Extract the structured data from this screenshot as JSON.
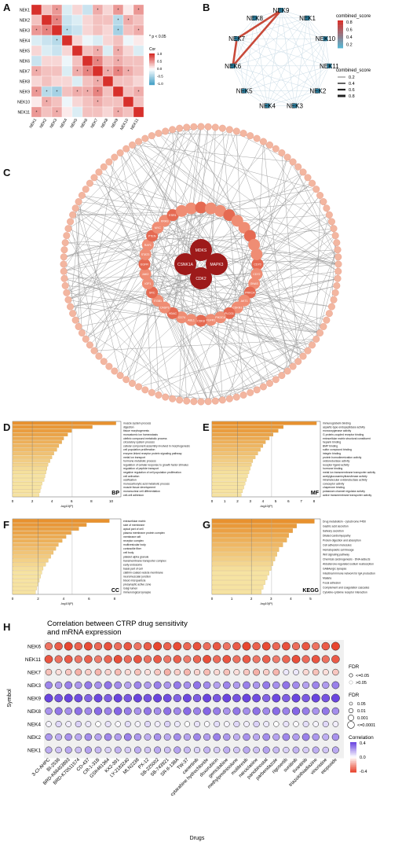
{
  "panels": {
    "A": "A",
    "B": "B",
    "C": "C",
    "D": "D",
    "E": "E",
    "F": "F",
    "G": "G",
    "H": "H"
  },
  "panelA": {
    "genes": [
      "NEK1",
      "NEK2",
      "NEK3",
      "NEK4",
      "NEK5",
      "NEK6",
      "NEK7",
      "NEK8",
      "NEK9",
      "NEK10",
      "NEK11"
    ],
    "pnote": "* p < 0.05",
    "legend_title": "Cor",
    "legend_ticks": [
      "1.0",
      "0.5",
      "0.0",
      "-0.5",
      "-1.0"
    ],
    "colors": {
      "pos": "#d7302b",
      "neg": "#4aa3c8",
      "mid": "#ffffff"
    },
    "matrix": [
      [
        1,
        0.3,
        0.5,
        -0.2,
        0.2,
        -0.3,
        0.4,
        0.2,
        0.5,
        0.1,
        0.5
      ],
      [
        0.3,
        1,
        0.6,
        -0.3,
        -0.2,
        0.2,
        0.3,
        0.3,
        -0.4,
        0.4,
        0.3
      ],
      [
        0.5,
        0.6,
        1,
        -0.4,
        -0.3,
        0.2,
        0.3,
        0.2,
        -0.5,
        0.3,
        0.4
      ],
      [
        -0.2,
        -0.3,
        -0.4,
        1,
        0.2,
        -0.1,
        -0.2,
        0.2,
        0.3,
        -0.1,
        0.1
      ],
      [
        0.2,
        -0.2,
        -0.3,
        0.2,
        1,
        0.3,
        0.4,
        -0.2,
        0.4,
        0.2,
        -0.2
      ],
      [
        -0.3,
        0.2,
        0.2,
        -0.1,
        0.3,
        1,
        0.6,
        0.3,
        0.4,
        0.3,
        0.3
      ],
      [
        0.4,
        0.3,
        0.3,
        -0.2,
        0.4,
        0.6,
        1,
        0.4,
        0.6,
        0.4,
        0.3
      ],
      [
        0.2,
        0.3,
        0.2,
        0.2,
        -0.2,
        0.3,
        0.4,
        1,
        0.3,
        0.3,
        0.2
      ],
      [
        0.5,
        -0.4,
        -0.5,
        0.3,
        0.4,
        0.4,
        0.6,
        0.3,
        1,
        0.3,
        0.4
      ],
      [
        0.1,
        0.4,
        0.3,
        -0.1,
        0.2,
        0.3,
        0.4,
        0.3,
        0.3,
        1,
        0.3
      ],
      [
        0.5,
        0.3,
        0.4,
        0.1,
        -0.2,
        0.3,
        0.3,
        0.2,
        0.4,
        0.3,
        1
      ]
    ]
  },
  "panelB": {
    "nodes": [
      "NEK9",
      "NEK1",
      "NEK10",
      "NEK11",
      "NEK2",
      "NEK3",
      "NEK4",
      "NEK5",
      "NEK6",
      "NEK7",
      "NEK8"
    ],
    "legend_fill_title": "combined_score",
    "legend_fill_ticks": [
      "0.8",
      "0.6",
      "0.4",
      "0.2"
    ],
    "legend_size_title": "combined_score",
    "legend_size_ticks": [
      "0.2",
      "0.4",
      "0.6",
      "0.8"
    ],
    "strong_edges": [
      [
        "NEK9",
        "NEK7"
      ],
      [
        "NEK9",
        "NEK6"
      ],
      [
        "NEK7",
        "NEK6"
      ]
    ]
  },
  "panelC": {
    "core_nodes": [
      "MAPK3",
      "MDKS",
      "CSNK1A",
      "CDK2"
    ],
    "inner_nodes": [
      "CD70",
      "CD72",
      "GNAS",
      "PRKCA",
      "AKT1",
      "CDKN1",
      "PLCG1",
      "PIK3CA",
      "FGFR1",
      "CDK8",
      "ABL1",
      "CD74",
      "HDAC",
      "CASP3",
      "ITGB1",
      "SRC",
      "IGF1",
      "JAK2",
      "EGFR",
      "STAT3",
      "RAF1",
      "PTEN",
      "MYC",
      "KRAS",
      "ESR1"
    ]
  },
  "panelD": {
    "tag": "BP",
    "xlabel": "-log10(P)",
    "xticks": [
      "0",
      "2",
      "4",
      "6",
      "8",
      "10"
    ],
    "terms": [
      "muscle system process",
      "digestion",
      "tissue morphogenesis",
      "monoatomic ion homeostasis",
      "olefinic compound metabolic process",
      "circulatory system process",
      "cellular component assembly involved in morphogenesis",
      "cell population proliferation",
      "enzyme-linked receptor protein signaling pathway",
      "metal ion transport",
      "hormone metabolic process",
      "regulation of cellular response to growth factor stimulus",
      "regulation of peptide transport",
      "negative regulation of cell population proliferation",
      "cell activation",
      "ossification",
      "monocarboxylic acid metabolic process",
      "muscle tissue development",
      "mononuclear cell differentiation",
      "cell-cell adhesion"
    ],
    "values": [
      10.5,
      8.1,
      6.0,
      5.6,
      5.2,
      5.0,
      4.7,
      4.5,
      4.2,
      4.0,
      3.8,
      3.6,
      3.5,
      3.4,
      3.3,
      3.2,
      3.0,
      2.9,
      2.8,
      2.7
    ]
  },
  "panelE": {
    "tag": "MF",
    "xlabel": "-log10(P)",
    "xticks": [
      "0",
      "1",
      "2",
      "3",
      "4",
      "5",
      "6",
      "7",
      "8"
    ],
    "terms": [
      "immunoglobulin binding",
      "aspartic-type endopeptidase activity",
      "monooxygenase activity",
      "G protein-coupled receptor binding",
      "extracellular matrix structural constituent",
      "heparin binding",
      "BMP binding",
      "sulfur compound binding",
      "integrin binding",
      "protein homodimerization activity",
      "oxidoreductase activity",
      "receptor ligand activity",
      "hormone binding",
      "metal ion transmembrane transporter activity",
      "acetylglucosaminyltransferase activity",
      "intramolecular oxidoreductase activity",
      "coreceptor activity",
      "chaperone binding",
      "potassium channel regulator activity",
      "active transmembrane transporter activity"
    ],
    "values": [
      8.2,
      5.6,
      5.2,
      4.8,
      4.5,
      4.2,
      4.0,
      3.8,
      3.6,
      3.4,
      3.2,
      3.1,
      3.0,
      2.9,
      2.8,
      2.7,
      2.6,
      2.5,
      2.4,
      2.3
    ]
  },
  "panelF": {
    "tag": "CC",
    "xlabel": "-log10(P)",
    "xticks": [
      "0",
      "2",
      "4",
      "6",
      "8"
    ],
    "terms": [
      "extracellular matrix",
      "side of membrane",
      "apical part of cell",
      "plasma membrane protein complex",
      "membrane raft",
      "receptor complex",
      "multivesicular body",
      "contractile fiber",
      "cell body",
      "platelet alpha granule",
      "transmembrane transporter complex",
      "early endosome",
      "basal part of cell",
      "clathrin-coated vesicle membrane",
      "neuromuscular junction",
      "blood microparticle",
      "presynaptic active zone",
      "Golgi lumen",
      "immunological synapse"
    ],
    "values": [
      7.6,
      5.8,
      5.2,
      4.6,
      4.2,
      3.9,
      3.6,
      3.4,
      3.2,
      3.0,
      2.8,
      2.6,
      2.4,
      2.3,
      2.2,
      2.1,
      2.0,
      1.9,
      1.8
    ]
  },
  "panelG": {
    "tag": "KEGG",
    "xlabel": "-log10(P)",
    "xticks": [
      "0",
      "1",
      "2",
      "3",
      "4",
      "5"
    ],
    "terms": [
      "Drug metabolism - cytochrome P450",
      "Gastric acid secretion",
      "Salivary secretion",
      "Dilated cardiomyopathy",
      "Protein digestion and absorption",
      "Cell adhesion molecules",
      "Hematopoietic cell lineage",
      "Wnt signaling pathway",
      "Chemical carcinogenesis - DNA adducts",
      "Aldosterone-regulated sodium reabsorption",
      "GABAergic synapse",
      "Intestinal immune network for IgA production",
      "Malaria",
      "Focal adhesion",
      "Complement and coagulation cascades",
      "Cytokine-cytokine receptor interaction"
    ],
    "values": [
      5.2,
      4.3,
      4.1,
      3.9,
      3.8,
      3.6,
      3.4,
      3.3,
      3.2,
      3.1,
      3.0,
      2.9,
      2.8,
      2.7,
      2.6,
      2.5
    ]
  },
  "panelH": {
    "title_line1": "Correlation between CTRP drug sensitivity",
    "title_line2": "and mRNA expression",
    "ylabel": "Symbol",
    "xlabel": "Drugs",
    "symbols": [
      "NEK6",
      "NEK11",
      "NEK7",
      "NEK3",
      "NEK9",
      "NEK8",
      "NEK4",
      "NEK2",
      "NEK1"
    ],
    "drugs": [
      "3-Cl-AHPC",
      "BI-2536",
      "BRD-K66453893",
      "BRD-K70511574",
      "CD-437",
      "CR-1-31B",
      "GSK461364",
      "KX2-391",
      "LY-2183240",
      "MLN2238",
      "PX-12",
      "SB-225002",
      "SB-743921",
      "SR-II-138A",
      "TW-37",
      "canertinib",
      "cytarabine hydrochloride",
      "doxorubicin",
      "gemcitabine",
      "methylprednisolone",
      "molibresib",
      "narciclasine",
      "panobinostat",
      "parbendazole",
      "rigosertib",
      "sunitinib",
      "tivantinib",
      "triazolothiadiazine",
      "vincristine",
      "etoposide"
    ],
    "legend_fdr_title": "FDR",
    "legend_fdr_items": [
      "<=0.05",
      ">0.05"
    ],
    "legend_size_title": "FDR",
    "legend_size_items": [
      "0.05",
      "0.01",
      "0.001",
      "<=0.0001"
    ],
    "legend_color_title": "Correlation",
    "legend_color_ticks": [
      "0.4",
      "0.0",
      "-0.4"
    ],
    "row_corr": [
      0.35,
      0.33,
      0.12,
      -0.25,
      -0.38,
      -0.28,
      -0.05,
      -0.22,
      -0.15
    ]
  }
}
